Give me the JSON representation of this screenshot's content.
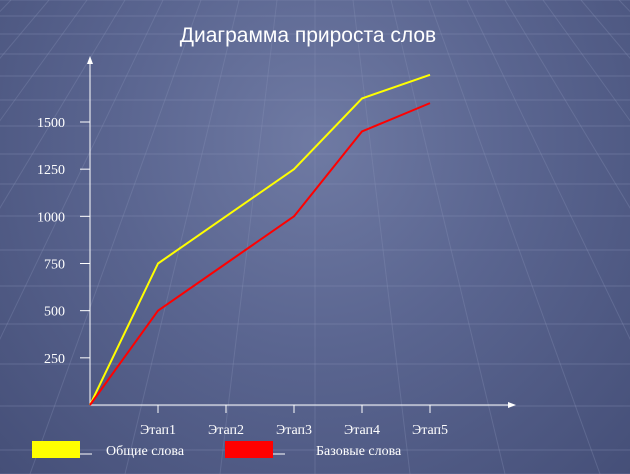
{
  "chart_data": {
    "type": "line",
    "title": "Диаграмма прироста слов",
    "categories": [
      "",
      "Этап1",
      "Этап2",
      "Этап3",
      "Этап4",
      "Этап5"
    ],
    "yticks": [
      250,
      500,
      750,
      1000,
      1250,
      1500
    ],
    "ylim": [
      0,
      1700
    ],
    "grid": false,
    "legend_position": "bottom-left",
    "series": [
      {
        "name": "Общие слова",
        "color": "#ffff00",
        "values": [
          0,
          750,
          1000,
          1250,
          1625,
          1750
        ]
      },
      {
        "name": "Базовые слова",
        "color": "#ff0000",
        "values": [
          0,
          500,
          750,
          1000,
          1450,
          1600
        ]
      }
    ]
  }
}
